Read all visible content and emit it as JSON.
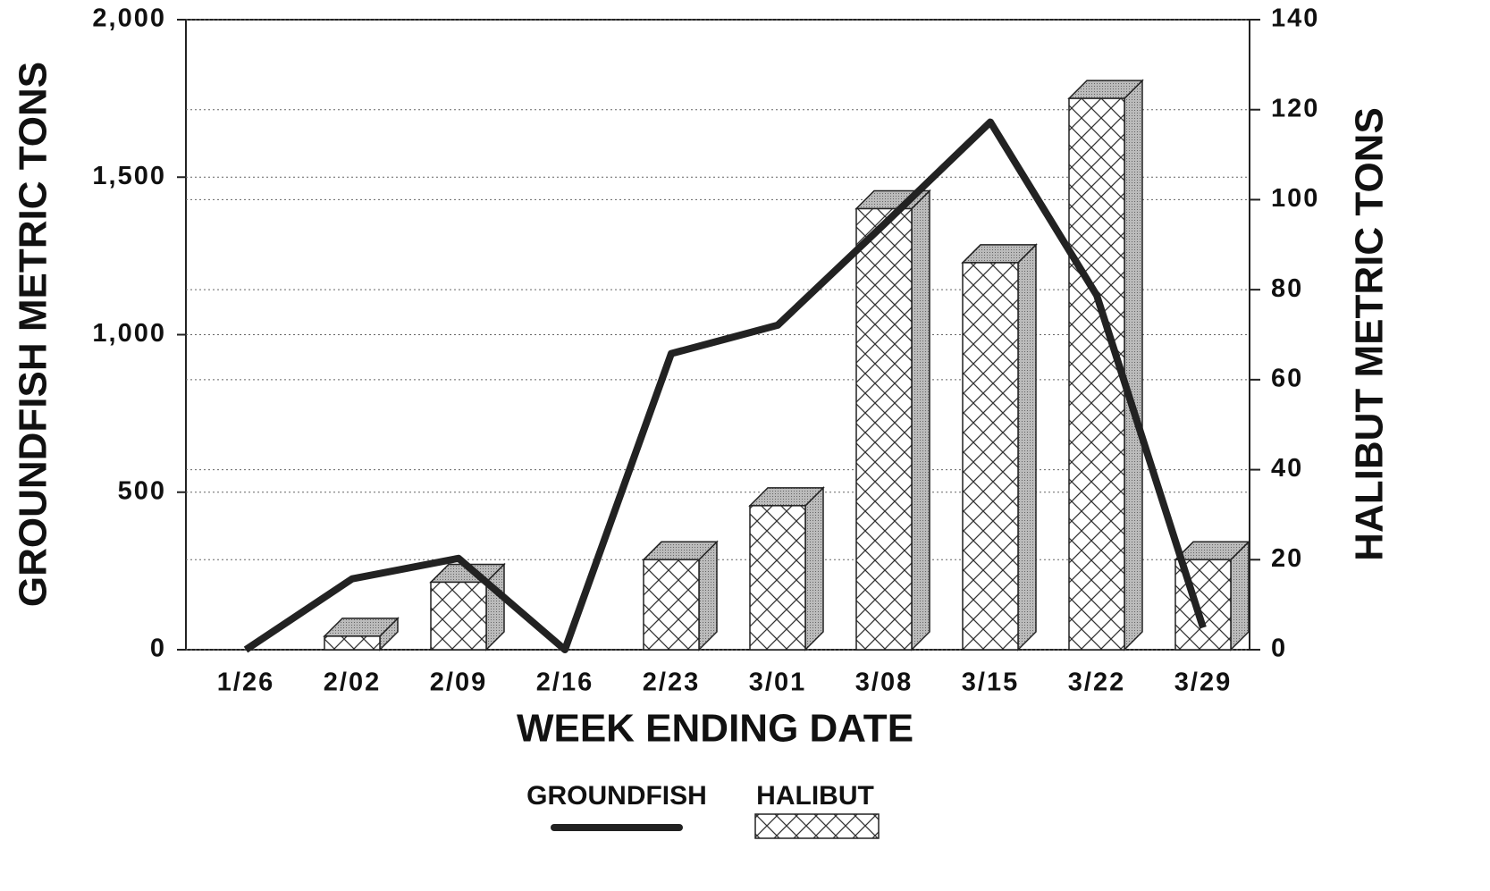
{
  "chart_data": {
    "type": "bar",
    "x_label": "WEEK ENDING DATE",
    "y_label": "GROUNDFISH METRIC TONS",
    "y2_label": "HALIBUT METRIC TONS",
    "categories": [
      "1/26",
      "2/02",
      "2/09",
      "2/16",
      "2/23",
      "3/01",
      "3/08",
      "3/15",
      "3/22",
      "3/29"
    ],
    "series": [
      {
        "name": "GROUNDFISH",
        "type": "line",
        "color": "#222222",
        "values": [
          0,
          225,
          290,
          0,
          940,
          1030,
          1350,
          1675,
          1125,
          70
        ]
      },
      {
        "name": "HALIBUT",
        "type": "bar",
        "axis": "y2",
        "color": "#ffffff",
        "pattern": "crosshatch",
        "values": [
          null,
          3,
          15,
          null,
          20,
          32,
          98,
          86,
          122.5,
          20
        ]
      }
    ],
    "ylim": [
      0,
      2000
    ],
    "yticks": [
      0,
      500,
      {
        "value": 1000,
        "label": "1,000"
      },
      {
        "value": 1500,
        "label": "1,500"
      },
      {
        "value": 2000,
        "label": "2,000"
      }
    ],
    "y2lim": [
      0,
      140
    ],
    "y2ticks": [
      0,
      20,
      40,
      60,
      80,
      100,
      120,
      140
    ],
    "grid": true,
    "legend": "bottom"
  }
}
